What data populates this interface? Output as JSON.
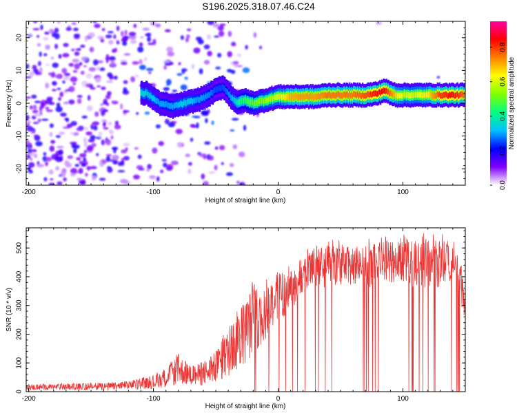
{
  "title": "S196.2025.318.07.46.C24",
  "chart_data": [
    {
      "type": "heatmap",
      "name": "spectrogram",
      "xlabel": "Height of straight line (km)",
      "ylabel": "Frequency (Hz)",
      "xlim": [
        -202,
        150
      ],
      "ylim": [
        -25,
        25
      ],
      "x_ticks": [
        -200,
        -100,
        0,
        100
      ],
      "y_ticks": [
        -20,
        -10,
        0,
        10,
        20
      ],
      "colorbar": {
        "label": "Normalized spectral amplitude",
        "range": [
          0.0,
          0.95
        ],
        "ticks": [
          0.0,
          0.2,
          0.4,
          0.6,
          0.8
        ],
        "tick_labels": [
          "0.0",
          "0.2",
          "0.4",
          "0.6",
          "0.8"
        ],
        "colors": [
          "#ffffff",
          "#8000ff",
          "#0000ff",
          "#00c0ff",
          "#00ff80",
          "#80ff00",
          "#ffff00",
          "#ff8000",
          "#ff0000",
          "#ff00a0"
        ]
      },
      "ridge": {
        "x": [
          -105,
          -95,
          -85,
          -75,
          -65,
          -58,
          -50,
          -44,
          -38,
          -32,
          -28,
          -20,
          -10,
          0,
          10,
          20,
          30,
          40,
          50,
          60,
          70,
          80,
          85,
          90,
          95,
          100,
          110,
          120,
          130,
          140,
          150
        ],
        "freq": [
          3,
          0,
          -1,
          0,
          1,
          2,
          4,
          5,
          2,
          0,
          1,
          0,
          1,
          2,
          2,
          2,
          2,
          2.5,
          2.5,
          2.5,
          2.5,
          3,
          4,
          3,
          2.5,
          2.5,
          2.5,
          2.5,
          2.5,
          2.5,
          2.5
        ],
        "amplitude": [
          0.35,
          0.3,
          0.3,
          0.35,
          0.3,
          0.3,
          0.25,
          0.25,
          0.3,
          0.4,
          0.45,
          0.5,
          0.55,
          0.6,
          0.7,
          0.72,
          0.72,
          0.75,
          0.75,
          0.75,
          0.78,
          0.85,
          0.85,
          0.75,
          0.65,
          0.6,
          0.6,
          0.65,
          0.8,
          0.85,
          0.75
        ]
      },
      "noise_region_x": [
        -202,
        -110
      ]
    },
    {
      "type": "line",
      "name": "snr",
      "xlabel": "Height of straight line (km)",
      "ylabel": "SNR (10 * v/v)",
      "xlim": [
        -202,
        150
      ],
      "ylim": [
        0,
        570
      ],
      "x_ticks": [
        -200,
        -100,
        0,
        100
      ],
      "y_ticks": [
        0,
        100,
        200,
        300,
        400,
        500
      ],
      "line_color": "#ee3333",
      "envelope": {
        "x": [
          -202,
          -160,
          -130,
          -115,
          -100,
          -90,
          -80,
          -70,
          -60,
          -50,
          -40,
          -30,
          -25,
          -20,
          -15,
          -10,
          -5,
          0,
          5,
          10,
          15,
          20,
          30,
          40,
          50,
          60,
          70,
          80,
          90,
          100,
          110,
          120,
          130,
          140,
          145,
          150
        ],
        "upper": [
          25,
          28,
          32,
          40,
          55,
          80,
          130,
          90,
          100,
          140,
          220,
          300,
          330,
          380,
          340,
          380,
          400,
          420,
          410,
          420,
          430,
          480,
          500,
          510,
          515,
          500,
          510,
          520,
          530,
          540,
          520,
          530,
          525,
          530,
          480,
          320
        ],
        "lower": [
          5,
          5,
          5,
          8,
          10,
          15,
          25,
          20,
          20,
          30,
          50,
          80,
          100,
          130,
          150,
          180,
          220,
          250,
          260,
          280,
          300,
          330,
          350,
          360,
          370,
          370,
          360,
          370,
          380,
          380,
          360,
          360,
          360,
          370,
          320,
          250
        ]
      },
      "dropout_start_x": -20,
      "dropout_value": 0
    }
  ]
}
